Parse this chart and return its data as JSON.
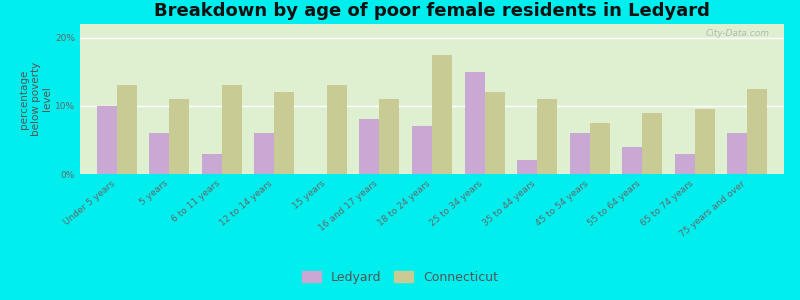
{
  "title": "Breakdown by age of poor female residents in Ledyard",
  "ylabel": "percentage\nbelow poverty\nlevel",
  "categories": [
    "Under 5 years",
    "5 years",
    "6 to 11 years",
    "12 to 14 years",
    "15 years",
    "16 and 17 years",
    "18 to 24 years",
    "25 to 34 years",
    "35 to 44 years",
    "45 to 54 years",
    "55 to 64 years",
    "65 to 74 years",
    "75 years and over"
  ],
  "ledyard": [
    10.0,
    6.0,
    3.0,
    6.0,
    0.0,
    8.0,
    7.0,
    15.0,
    2.0,
    6.0,
    4.0,
    3.0,
    6.0
  ],
  "connecticut": [
    13.0,
    11.0,
    13.0,
    12.0,
    13.0,
    11.0,
    17.5,
    12.0,
    11.0,
    7.5,
    9.0,
    9.5,
    12.5
  ],
  "ledyard_color": "#c9a8d4",
  "connecticut_color": "#c8cc94",
  "background_color": "#dff0d0",
  "outer_background": "#00eeee",
  "ylim": [
    0,
    22
  ],
  "yticks": [
    0,
    10,
    20
  ],
  "ytick_labels": [
    "0%",
    "10%",
    "20%"
  ],
  "bar_width": 0.38,
  "title_fontsize": 13,
  "axis_label_fontsize": 7.5,
  "tick_fontsize": 6.5,
  "legend_fontsize": 9
}
